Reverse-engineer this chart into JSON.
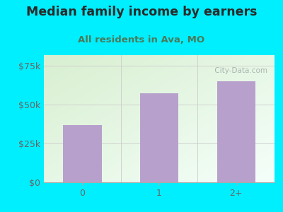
{
  "title": "Median family income by earners",
  "subtitle": "All residents in Ava, MO",
  "categories": [
    "0",
    "1",
    "2+"
  ],
  "values": [
    37000,
    57500,
    65000
  ],
  "bar_color": "#b8a0cc",
  "background_outer": "#00efff",
  "background_inner_topleft": "#d8efd0",
  "background_inner_bottomright": "#f5fffa",
  "yticks": [
    0,
    25000,
    50000,
    75000
  ],
  "ytick_labels": [
    "$0",
    "$25k",
    "$50k",
    "$75k"
  ],
  "ylim": [
    0,
    82000
  ],
  "title_color": "#2a2a2a",
  "subtitle_color": "#4a7a5a",
  "tick_color": "#666666",
  "watermark_text": " City-Data.com",
  "title_fontsize": 12.5,
  "subtitle_fontsize": 9.5
}
